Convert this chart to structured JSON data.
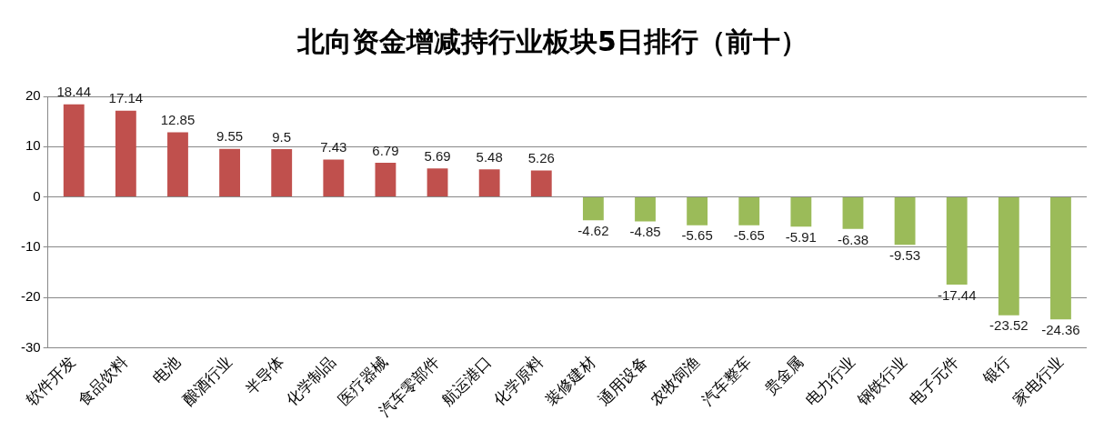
{
  "chart_data": {
    "type": "bar",
    "title": "北向资金增减持行业板块5日排行（前十）",
    "categories": [
      "软件开发",
      "食品饮料",
      "电池",
      "酿酒行业",
      "半导体",
      "化学制品",
      "医疗器械",
      "汽车零部件",
      "航运港口",
      "化学原料",
      "装修建材",
      "通用设备",
      "农牧饲渔",
      "汽车整车",
      "贵金属",
      "电力行业",
      "钢铁行业",
      "电子元件",
      "银行",
      "家电行业"
    ],
    "values": [
      18.44,
      17.14,
      12.85,
      9.55,
      9.5,
      7.43,
      6.79,
      5.69,
      5.48,
      5.26,
      -4.62,
      -4.85,
      -5.65,
      -5.65,
      -5.91,
      -6.38,
      -9.53,
      -17.44,
      -23.52,
      -24.36
    ],
    "colors": [
      "#c0504d",
      "#c0504d",
      "#c0504d",
      "#c0504d",
      "#c0504d",
      "#c0504d",
      "#c0504d",
      "#c0504d",
      "#c0504d",
      "#c0504d",
      "#9bbb59",
      "#9bbb59",
      "#9bbb59",
      "#9bbb59",
      "#9bbb59",
      "#9bbb59",
      "#9bbb59",
      "#9bbb59",
      "#9bbb59",
      "#9bbb59"
    ],
    "ylim": [
      -30,
      20
    ],
    "yticks": [
      -30,
      -20,
      -10,
      0,
      10,
      20
    ],
    "grid": "y",
    "data_labels": true
  }
}
